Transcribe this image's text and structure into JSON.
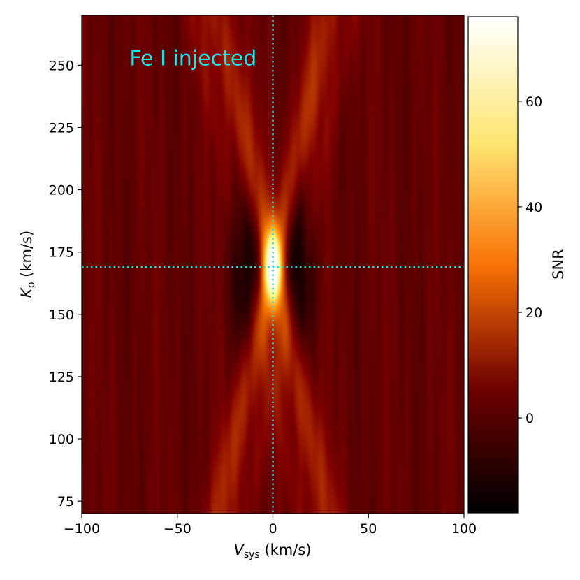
{
  "chart_data": {
    "type": "heatmap",
    "title": "",
    "xlabel": {
      "main": "V",
      "sub": "sys",
      "unit": " (km/s)"
    },
    "ylabel": {
      "main": "K",
      "sub": "p",
      "unit": " (km/s)"
    },
    "xlim": [
      -100,
      100
    ],
    "ylim": [
      70,
      270
    ],
    "xticks": [
      -100,
      -50,
      0,
      50,
      100
    ],
    "xtick_labels": [
      "−100",
      "−50",
      "0",
      "50",
      "100"
    ],
    "yticks": [
      75,
      100,
      125,
      150,
      175,
      200,
      225,
      250
    ],
    "ytick_labels": [
      "75",
      "100",
      "125",
      "150",
      "175",
      "200",
      "225",
      "250"
    ],
    "colorbar": {
      "label": "SNR",
      "range": [
        -18,
        76
      ],
      "ticks": [
        0,
        20,
        40,
        60
      ],
      "tick_labels": [
        "0",
        "20",
        "40",
        "60"
      ],
      "colormap": "afmhot"
    },
    "peak": {
      "vsys": 0,
      "kp": 169,
      "snr": 76
    },
    "crosshair": {
      "vsys": 0,
      "kp": 169,
      "color": "#17e0e6",
      "style": "dotted"
    },
    "annotation": {
      "text": "Fe I injected",
      "vsys": -75,
      "kp": 253,
      "color": "#17e8e8"
    },
    "description_of_field": "X-shaped ridge of positive SNR crossing at (Vsys=0, Kp=169); dark negative lobes either side of the peak; background near 0 SNR"
  }
}
